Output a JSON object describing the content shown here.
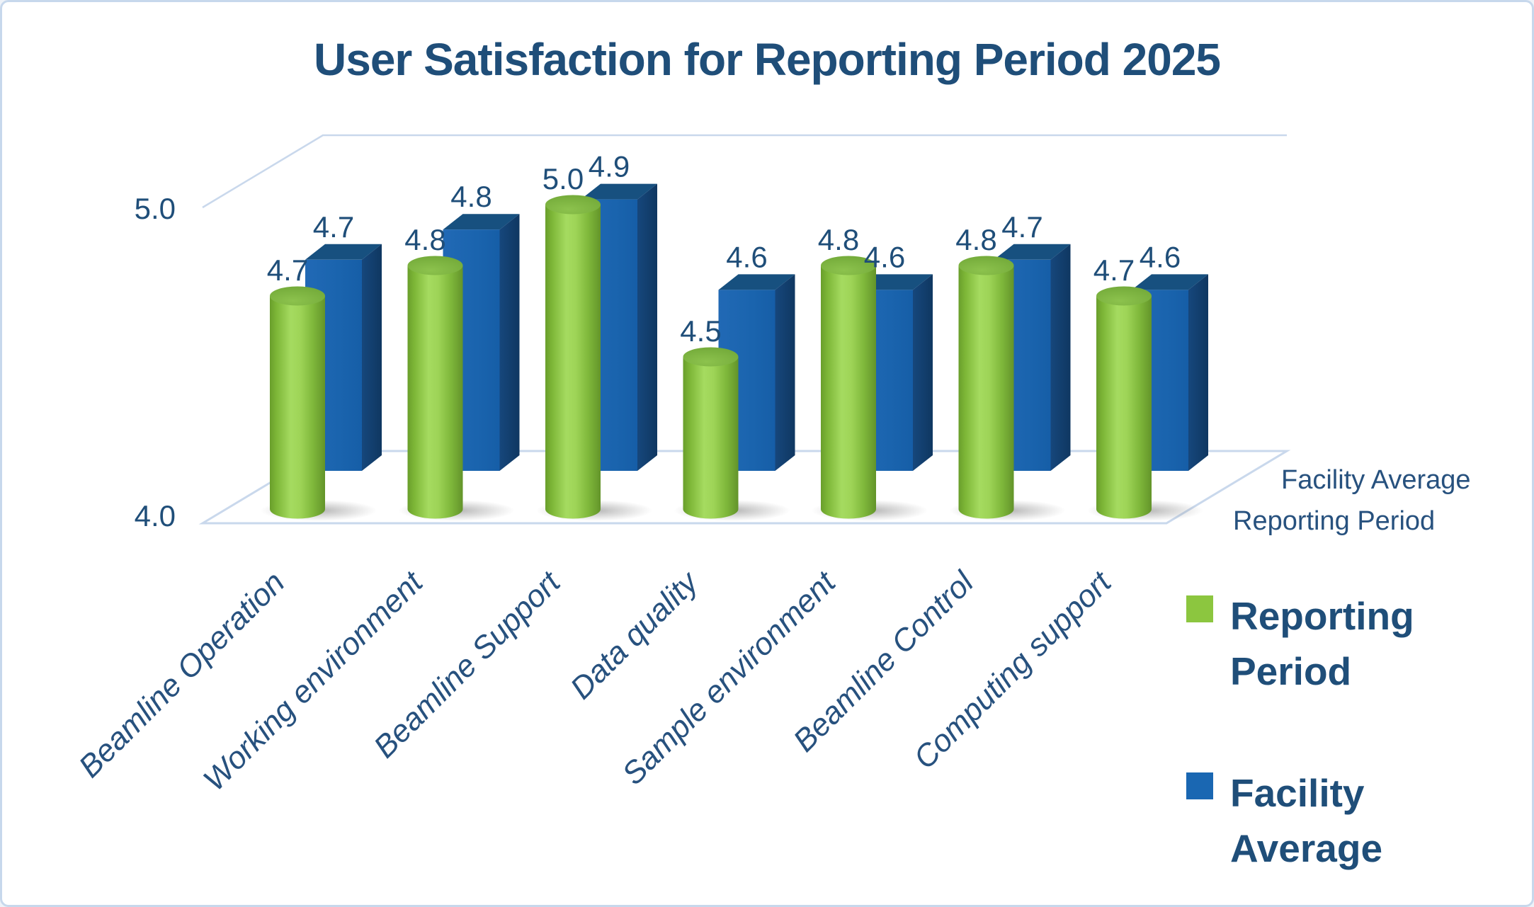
{
  "title": "User Satisfaction for Reporting Period 2025",
  "chart_data": {
    "type": "bar",
    "view": "3d",
    "title": "User Satisfaction for Reporting Period 2025",
    "categories": [
      "Beamline Operation",
      "Working environment",
      "Beamline Support",
      "Data quality",
      "Sample environment",
      "Beamline Control",
      "Computing support"
    ],
    "series": [
      {
        "name": "Reporting Period",
        "shape": "cylinder",
        "color": "#8cc63f",
        "values": [
          4.7,
          4.8,
          5.0,
          4.5,
          4.8,
          4.8,
          4.7
        ]
      },
      {
        "name": "Facility Average",
        "shape": "box",
        "color": "#1a67b2",
        "values": [
          4.7,
          4.8,
          4.9,
          4.6,
          4.6,
          4.7,
          4.6
        ]
      }
    ],
    "value_axis": {
      "min": 4.0,
      "max": 5.0,
      "ticks": [
        "5.0",
        "4.0"
      ]
    },
    "depth_axis": {
      "labels": [
        "Facility Average",
        "Reporting Period"
      ]
    },
    "legend": {
      "position": "right",
      "entries": [
        "Reporting Period",
        "Facility Average"
      ]
    },
    "data_label_format": "one-decimal",
    "grid": "single 5.0 gridline on back wall, floor outline",
    "colors": {
      "text_navy": "#1f4e79",
      "gridline": "#c9d8ec",
      "green_body": "#8cc63f",
      "green_cap": "#74aa38",
      "blue_front": "#1a67b2",
      "blue_side": "#123e6c",
      "blue_top": "#17507f"
    }
  }
}
